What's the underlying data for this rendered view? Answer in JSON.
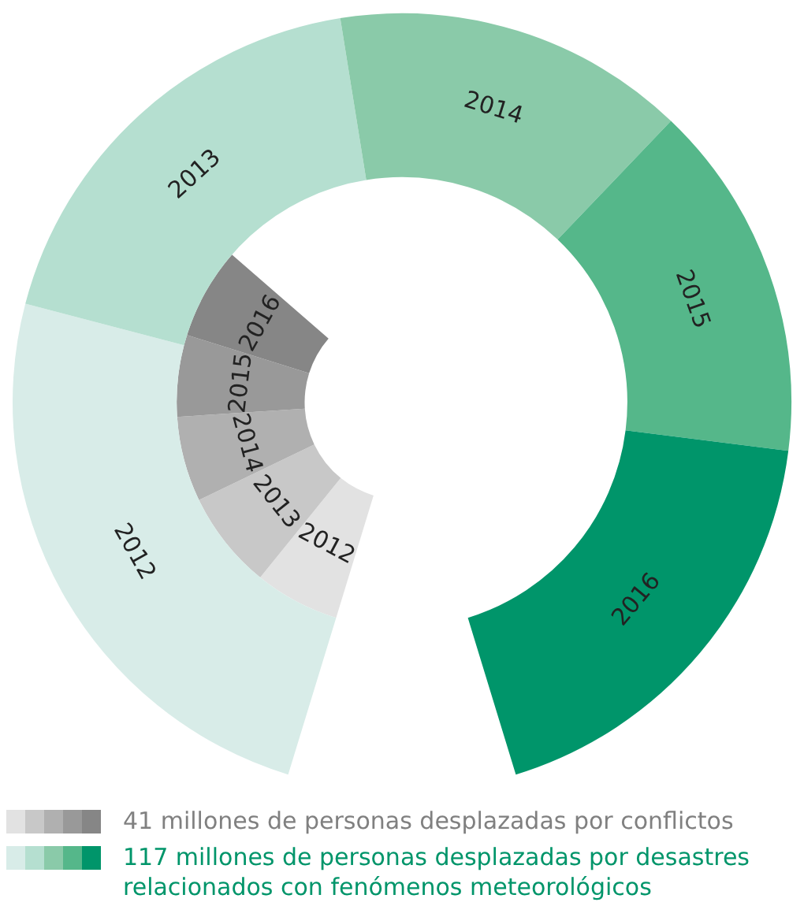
{
  "chart_data": {
    "type": "donut",
    "categories": [
      "2012",
      "2013",
      "2014",
      "2015",
      "2016"
    ],
    "legend": "bottom",
    "series": [
      {
        "name": "41 millones de personas desplazadas por conflictos",
        "color": "#808080",
        "colors": [
          "#e2e2e2",
          "#c8c8c8",
          "#b0b0b0",
          "#999999",
          "#868686"
        ],
        "values": [
          19.3,
          22.2,
          19.3,
          18.5,
          20.7
        ]
      },
      {
        "name": "117 millones de personas desplazadas por desastres relacionados con fenómenos meteorológicos",
        "color": "#00956a",
        "colors": [
          "#d8ece8",
          "#b5dfd0",
          "#8acaa9",
          "#55b78a",
          "#00956a"
        ],
        "values": [
          26.9,
          20.3,
          16.2,
          16.4,
          20.2
        ]
      }
    ]
  }
}
